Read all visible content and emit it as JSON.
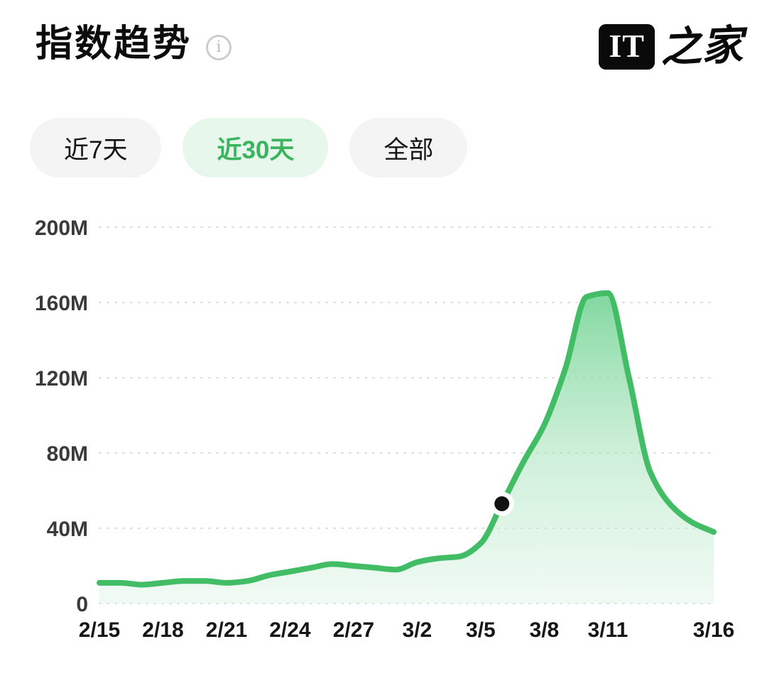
{
  "header": {
    "title": "指数趋势",
    "info_icon_glyph": "i",
    "logo": {
      "box_text": "IT",
      "script_text": "之家"
    }
  },
  "tabs": [
    {
      "label": "近7天",
      "active": false
    },
    {
      "label": "近30天",
      "active": true
    },
    {
      "label": "全部",
      "active": false
    }
  ],
  "colors": {
    "line": "#42bd66",
    "fill_top": "#6fd291",
    "fill_mid": "#a5e3ba",
    "fill_bottom": "#d9f3e3",
    "tab_active_bg": "#e7f7ec",
    "tab_active_text": "#3ab45f",
    "tab_inactive_bg": "#f4f4f5",
    "grid": "#dcdcdc",
    "marker": "#111111"
  },
  "chart_data": {
    "type": "area",
    "title": "指数趋势",
    "unit": "M",
    "x": [
      "2/15",
      "2/16",
      "2/17",
      "2/18",
      "2/19",
      "2/20",
      "2/21",
      "2/22",
      "2/23",
      "2/24",
      "2/25",
      "2/26",
      "2/27",
      "2/28",
      "3/1",
      "3/2",
      "3/3",
      "3/4",
      "3/5",
      "3/6",
      "3/7",
      "3/8",
      "3/9",
      "3/10",
      "3/11",
      "3/12",
      "3/13",
      "3/14",
      "3/15",
      "3/16"
    ],
    "values": [
      11,
      11,
      10,
      11,
      12,
      12,
      11,
      12,
      15,
      17,
      19,
      21,
      20,
      19,
      18,
      22,
      24,
      25,
      32,
      53,
      75,
      95,
      125,
      163,
      165,
      120,
      70,
      52,
      43,
      38
    ],
    "ylim": [
      0,
      200
    ],
    "yticks": [
      0,
      40,
      80,
      120,
      160,
      200
    ],
    "ytick_labels": [
      "0",
      "40M",
      "80M",
      "120M",
      "160M",
      "200M"
    ],
    "xtick_indices": [
      0,
      3,
      6,
      9,
      12,
      15,
      18,
      21,
      24,
      29
    ],
    "xtick_labels": [
      "2/15",
      "2/18",
      "2/21",
      "2/24",
      "2/27",
      "3/2",
      "3/5",
      "3/8",
      "3/11",
      "3/16"
    ],
    "grid_style": "dashed",
    "legend_position": "none",
    "marker": {
      "index": 19,
      "x": "3/6",
      "value": 53
    }
  }
}
